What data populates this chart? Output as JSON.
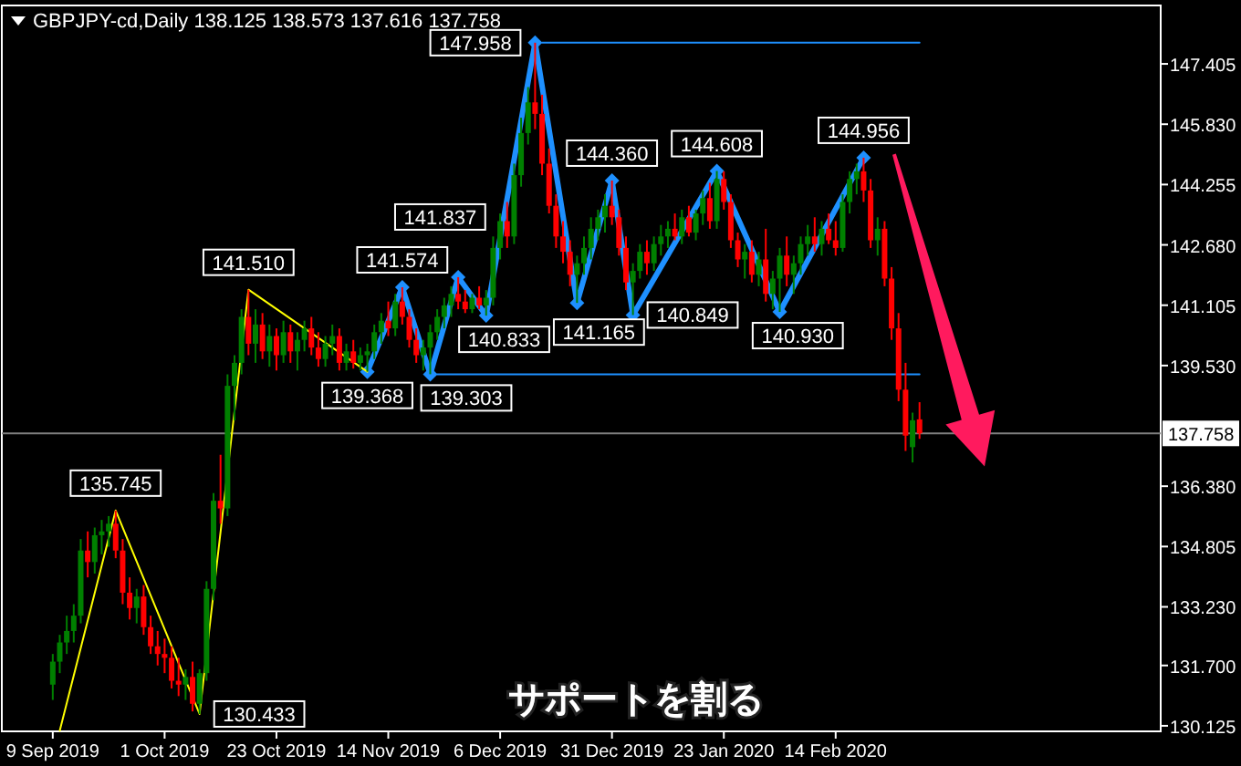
{
  "chart_data": {
    "type": "candlestick",
    "title": "GBPJPY-cd,Daily  138.125 138.573 137.616 137.758",
    "categories": [
      "9 Sep 2019",
      null,
      null,
      null,
      null,
      null,
      null,
      null,
      null,
      null,
      null,
      null,
      null,
      null,
      null,
      null,
      "1 Oct 2019",
      null,
      null,
      null,
      null,
      null,
      null,
      null,
      null,
      null,
      null,
      null,
      null,
      null,
      null,
      null,
      "23 Oct 2019",
      null,
      null,
      null,
      null,
      null,
      null,
      null,
      null,
      null,
      null,
      null,
      null,
      null,
      null,
      null,
      "14 Nov 2019",
      null,
      null,
      null,
      null,
      null,
      null,
      null,
      null,
      null,
      null,
      null,
      null,
      null,
      null,
      null,
      "6 Dec 2019",
      null,
      null,
      null,
      null,
      null,
      null,
      null,
      null,
      null,
      null,
      null,
      null,
      null,
      null,
      null,
      "31 Dec 2019",
      null,
      null,
      null,
      null,
      null,
      null,
      null,
      null,
      null,
      null,
      null,
      null,
      null,
      null,
      null,
      "23 Jan 2020",
      null,
      null,
      null,
      null,
      null,
      null,
      null,
      null,
      null,
      null,
      null,
      null,
      null,
      null,
      null,
      "14 Feb 2020",
      null,
      null,
      null,
      null,
      null,
      null,
      null,
      null,
      null,
      null,
      null,
      null,
      null,
      null,
      null,
      null,
      null,
      null,
      null,
      null,
      null,
      null,
      null,
      null,
      null,
      null,
      null,
      null,
      null,
      null,
      null,
      null,
      null,
      null,
      null,
      null,
      null,
      null,
      null,
      null,
      null,
      null,
      null,
      null,
      null,
      null
    ],
    "ohlc": [
      [
        131.2,
        132.0,
        130.8,
        131.8
      ],
      [
        131.8,
        132.5,
        131.5,
        132.3
      ],
      [
        132.3,
        133.0,
        132.0,
        132.6
      ],
      [
        132.6,
        133.3,
        132.3,
        133.0
      ],
      [
        133.0,
        135.0,
        132.8,
        134.7
      ],
      [
        134.7,
        135.2,
        134.0,
        134.4
      ],
      [
        134.4,
        135.3,
        134.1,
        135.1
      ],
      [
        135.1,
        135.5,
        134.6,
        135.2
      ],
      [
        135.2,
        135.6,
        134.8,
        135.4
      ],
      [
        135.4,
        135.745,
        134.5,
        134.7
      ],
      [
        134.7,
        135.0,
        133.3,
        133.6
      ],
      [
        133.6,
        134.0,
        132.9,
        133.2
      ],
      [
        133.2,
        133.7,
        132.8,
        133.5
      ],
      [
        133.5,
        133.8,
        132.5,
        132.7
      ],
      [
        132.7,
        133.0,
        132.0,
        132.2
      ],
      [
        132.2,
        132.6,
        131.7,
        132.0
      ],
      [
        132.0,
        132.4,
        131.5,
        131.9
      ],
      [
        131.9,
        132.2,
        131.1,
        131.3
      ],
      [
        131.3,
        131.9,
        130.9,
        131.2
      ],
      [
        131.2,
        131.6,
        130.8,
        131.4
      ],
      [
        131.4,
        131.8,
        130.5,
        130.7
      ],
      [
        130.7,
        131.6,
        130.433,
        131.5
      ],
      [
        131.5,
        133.9,
        131.3,
        133.7
      ],
      [
        133.7,
        136.2,
        133.4,
        136.0
      ],
      [
        136.0,
        137.2,
        135.4,
        135.8
      ],
      [
        135.8,
        139.3,
        135.6,
        139.0
      ],
      [
        139.0,
        139.8,
        138.1,
        139.6
      ],
      [
        139.6,
        141.0,
        139.3,
        140.8
      ],
      [
        140.8,
        141.51,
        139.8,
        140.1
      ],
      [
        140.1,
        141.0,
        139.6,
        140.6
      ],
      [
        140.6,
        140.9,
        139.7,
        139.9
      ],
      [
        139.9,
        140.6,
        139.5,
        140.3
      ],
      [
        140.3,
        140.5,
        139.4,
        139.8
      ],
      [
        139.8,
        140.7,
        139.6,
        140.4
      ],
      [
        140.4,
        140.6,
        139.6,
        139.9
      ],
      [
        139.9,
        140.4,
        139.4,
        140.2
      ],
      [
        140.2,
        140.7,
        139.9,
        140.5
      ],
      [
        140.5,
        140.8,
        139.8,
        140.0
      ],
      [
        140.0,
        140.4,
        139.5,
        139.7
      ],
      [
        139.7,
        140.3,
        139.5,
        140.1
      ],
      [
        140.1,
        140.6,
        139.8,
        140.3
      ],
      [
        140.3,
        140.5,
        139.4,
        139.6
      ],
      [
        139.6,
        140.1,
        139.4,
        139.9
      ],
      [
        139.9,
        140.2,
        139.45,
        139.6
      ],
      [
        139.6,
        140.0,
        139.4,
        139.8
      ],
      [
        139.8,
        140.1,
        139.368,
        139.9
      ],
      [
        139.9,
        140.6,
        139.7,
        140.4
      ],
      [
        140.4,
        140.9,
        140.1,
        140.7
      ],
      [
        140.7,
        141.2,
        140.3,
        140.5
      ],
      [
        140.5,
        141.4,
        140.3,
        141.2
      ],
      [
        141.2,
        141.574,
        140.6,
        140.8
      ],
      [
        140.8,
        141.0,
        140.0,
        140.2
      ],
      [
        140.2,
        140.5,
        139.6,
        139.8
      ],
      [
        139.8,
        140.2,
        139.4,
        140.0
      ],
      [
        140.0,
        140.6,
        139.303,
        140.4
      ],
      [
        140.4,
        141.0,
        140.2,
        140.8
      ],
      [
        140.8,
        141.3,
        140.5,
        141.1
      ],
      [
        141.1,
        141.6,
        140.8,
        141.4
      ],
      [
        141.4,
        141.837,
        141.0,
        141.2
      ],
      [
        141.2,
        141.5,
        140.9,
        141.0
      ],
      [
        141.0,
        141.4,
        140.9,
        141.3
      ],
      [
        141.3,
        141.6,
        141.0,
        141.1
      ],
      [
        141.1,
        141.5,
        140.833,
        141.3
      ],
      [
        141.3,
        142.9,
        141.1,
        142.6
      ],
      [
        142.6,
        143.5,
        142.3,
        143.3
      ],
      [
        143.3,
        143.8,
        142.6,
        142.9
      ],
      [
        142.9,
        144.8,
        142.7,
        144.5
      ],
      [
        144.5,
        146.0,
        144.2,
        145.6
      ],
      [
        145.6,
        146.8,
        145.3,
        146.4
      ],
      [
        146.4,
        147.958,
        145.7,
        146.1
      ],
      [
        146.1,
        146.6,
        144.5,
        144.8
      ],
      [
        144.8,
        145.2,
        143.5,
        143.7
      ],
      [
        143.7,
        144.0,
        142.6,
        142.9
      ],
      [
        142.9,
        143.3,
        142.2,
        142.5
      ],
      [
        142.5,
        142.8,
        141.6,
        141.9
      ],
      [
        141.9,
        142.4,
        141.165,
        142.2
      ],
      [
        142.2,
        142.9,
        141.9,
        142.6
      ],
      [
        142.6,
        143.4,
        142.3,
        143.1
      ],
      [
        143.1,
        143.6,
        142.8,
        143.4
      ],
      [
        143.4,
        144.0,
        143.0,
        143.7
      ],
      [
        143.7,
        144.36,
        143.2,
        143.4
      ],
      [
        143.4,
        143.6,
        142.4,
        142.6
      ],
      [
        142.6,
        142.9,
        141.5,
        141.7
      ],
      [
        141.7,
        142.2,
        140.849,
        142.0
      ],
      [
        142.0,
        142.7,
        141.8,
        142.5
      ],
      [
        142.5,
        142.8,
        141.9,
        142.2
      ],
      [
        142.2,
        142.9,
        142.0,
        142.7
      ],
      [
        142.7,
        143.2,
        142.4,
        142.9
      ],
      [
        142.9,
        143.3,
        142.6,
        143.1
      ],
      [
        143.1,
        143.5,
        142.8,
        142.9
      ],
      [
        142.9,
        143.6,
        142.7,
        143.4
      ],
      [
        143.4,
        143.7,
        142.9,
        143.0
      ],
      [
        143.0,
        143.6,
        142.8,
        143.5
      ],
      [
        143.5,
        144.1,
        143.2,
        143.9
      ],
      [
        143.9,
        144.3,
        143.1,
        143.3
      ],
      [
        143.3,
        144.608,
        143.1,
        144.4
      ],
      [
        144.4,
        144.6,
        143.6,
        143.8
      ],
      [
        143.8,
        144.0,
        142.6,
        142.8
      ],
      [
        142.8,
        143.0,
        142.1,
        142.3
      ],
      [
        142.3,
        142.7,
        141.8,
        142.5
      ],
      [
        142.5,
        142.8,
        141.7,
        141.9
      ],
      [
        141.9,
        142.5,
        141.6,
        142.3
      ],
      [
        142.3,
        143.1,
        141.2,
        141.4
      ],
      [
        141.4,
        142.0,
        141.0,
        141.8
      ],
      [
        141.8,
        142.6,
        140.93,
        142.4
      ],
      [
        142.4,
        142.9,
        141.6,
        141.9
      ],
      [
        141.9,
        142.4,
        141.4,
        142.2
      ],
      [
        142.2,
        142.9,
        141.9,
        142.7
      ],
      [
        142.7,
        143.2,
        142.4,
        142.9
      ],
      [
        142.9,
        143.4,
        142.5,
        142.7
      ],
      [
        142.7,
        143.3,
        142.4,
        143.1
      ],
      [
        143.1,
        143.5,
        142.7,
        142.8
      ],
      [
        142.8,
        143.3,
        142.4,
        142.6
      ],
      [
        142.6,
        144.0,
        142.5,
        143.8
      ],
      [
        143.8,
        144.6,
        143.5,
        144.4
      ],
      [
        144.4,
        144.8,
        144.0,
        144.6
      ],
      [
        144.6,
        144.956,
        143.8,
        144.1
      ],
      [
        144.1,
        144.4,
        142.6,
        142.8
      ],
      [
        142.8,
        143.4,
        142.4,
        143.1
      ],
      [
        143.1,
        143.3,
        141.6,
        141.8
      ],
      [
        141.8,
        142.1,
        140.2,
        140.5
      ],
      [
        140.5,
        140.9,
        138.6,
        138.9
      ],
      [
        138.9,
        139.6,
        137.3,
        137.7
      ],
      [
        137.4,
        138.3,
        137.0,
        138.1
      ],
      [
        138.125,
        138.573,
        137.616,
        137.758
      ],
      null,
      null,
      null,
      null,
      null,
      null,
      null,
      null,
      null,
      null,
      null,
      null,
      null,
      null,
      null,
      null,
      null,
      null,
      null,
      null,
      null,
      null,
      null,
      null,
      null,
      null,
      null,
      null,
      null,
      null,
      null,
      null,
      null,
      null
    ],
    "series": [
      {
        "type": "line",
        "color": "#1e90ff",
        "marker": "diamond",
        "values": [
          null,
          null,
          null,
          null,
          null,
          null,
          null,
          null,
          null,
          null,
          null,
          null,
          null,
          null,
          null,
          null,
          null,
          null,
          null,
          null,
          null,
          null,
          null,
          null,
          null,
          null,
          null,
          null,
          null,
          null,
          null,
          null,
          null,
          null,
          null,
          null,
          null,
          null,
          null,
          null,
          null,
          null,
          null,
          null,
          null,
          139.368,
          null,
          null,
          null,
          null,
          141.574,
          null,
          null,
          null,
          139.303,
          null,
          null,
          null,
          141.837,
          null,
          null,
          null,
          140.833,
          null,
          null,
          null,
          null,
          null,
          null,
          147.958,
          null,
          null,
          null,
          null,
          null,
          141.165,
          null,
          null,
          null,
          null,
          144.36,
          null,
          null,
          140.849,
          null,
          null,
          null,
          null,
          null,
          null,
          null,
          null,
          null,
          null,
          null,
          144.608,
          null,
          null,
          null,
          null,
          null,
          null,
          null,
          null,
          140.93,
          null,
          null,
          null,
          null,
          null,
          null,
          null,
          null,
          null,
          null,
          null,
          144.956,
          null,
          null,
          null,
          null,
          null,
          null,
          null,
          null,
          null,
          null,
          null,
          null,
          null,
          null,
          null,
          null,
          null,
          null,
          null,
          null,
          null,
          null,
          null,
          null,
          null,
          null,
          null,
          null,
          null,
          null,
          null,
          null,
          null,
          null,
          null,
          null,
          null,
          null,
          null,
          null,
          null,
          null
        ],
        "value_labels": [
          null,
          null,
          null,
          null,
          null,
          null,
          null,
          null,
          null,
          null,
          null,
          null,
          null,
          null,
          null,
          null,
          null,
          null,
          null,
          null,
          null,
          null,
          null,
          null,
          null,
          null,
          null,
          null,
          null,
          null,
          null,
          null,
          null,
          null,
          null,
          null,
          null,
          null,
          null,
          null,
          null,
          null,
          null,
          null,
          null,
          "139.368",
          null,
          null,
          null,
          null,
          "141.574",
          null,
          null,
          null,
          "139.303",
          null,
          null,
          null,
          "141.837",
          null,
          null,
          null,
          "140.833",
          null,
          null,
          null,
          null,
          null,
          null,
          "147.958",
          null,
          null,
          null,
          null,
          null,
          "141.165",
          null,
          null,
          null,
          null,
          "144.360",
          null,
          null,
          "140.849",
          null,
          null,
          null,
          null,
          null,
          null,
          null,
          null,
          null,
          null,
          null,
          "144.608",
          null,
          null,
          null,
          null,
          null,
          null,
          null,
          null,
          "140.930",
          null,
          null,
          null,
          null,
          null,
          null,
          null,
          null,
          null,
          null,
          null,
          "144.956",
          null,
          null,
          null,
          null,
          null,
          null,
          null,
          null,
          null,
          null,
          null,
          null,
          null,
          null,
          null,
          null,
          null,
          null,
          null,
          null,
          null,
          null,
          null,
          null,
          null,
          null,
          null,
          null,
          null,
          null,
          null,
          null,
          null,
          null,
          null,
          null,
          null,
          null,
          null,
          null,
          null,
          null
        ]
      },
      {
        "type": "line",
        "color": "#ffff00",
        "values": [
          null,
          130.0,
          null,
          null,
          null,
          null,
          null,
          null,
          null,
          135.745,
          null,
          null,
          null,
          null,
          null,
          null,
          null,
          null,
          null,
          null,
          null,
          130.433,
          null,
          null,
          null,
          null,
          null,
          null,
          141.51,
          null,
          null,
          null,
          null,
          null,
          null,
          null,
          null,
          null,
          null,
          null,
          null,
          null,
          null,
          null,
          null,
          139.368,
          null,
          null,
          null,
          null,
          null,
          null,
          null,
          null,
          null,
          null,
          null,
          null,
          null,
          null,
          null,
          null,
          null,
          null,
          null,
          null,
          null,
          null,
          null,
          null,
          null,
          null,
          null,
          null,
          null,
          null,
          null,
          null,
          null,
          null,
          null,
          null,
          null,
          null,
          null,
          null,
          null,
          null,
          null,
          null,
          null,
          null,
          null,
          null,
          null,
          null,
          null,
          null,
          null,
          null,
          null,
          null,
          null,
          null,
          null,
          null,
          null,
          null,
          null,
          null,
          null,
          null,
          null,
          null,
          null,
          null,
          null,
          null,
          null,
          null,
          null,
          null,
          null,
          null,
          null,
          null,
          null,
          null,
          null,
          null,
          null,
          null,
          null,
          null,
          null,
          null,
          null,
          null,
          null,
          null,
          null,
          null,
          null,
          null,
          null,
          null,
          null,
          null,
          null,
          null,
          null,
          null,
          null,
          null,
          null,
          null,
          null,
          null,
          null
        ],
        "value_labels": [
          null,
          null,
          null,
          null,
          null,
          null,
          null,
          null,
          null,
          "135.745",
          null,
          null,
          null,
          null,
          null,
          null,
          null,
          null,
          null,
          null,
          null,
          "130.433",
          null,
          null,
          null,
          null,
          null,
          null,
          "141.510",
          null,
          null,
          null,
          null,
          null,
          null,
          null,
          null,
          null,
          null,
          null,
          null,
          null,
          null,
          null,
          null,
          null,
          null,
          null,
          null,
          null,
          null,
          null,
          null,
          null,
          null,
          null,
          null,
          null,
          null,
          null,
          null,
          null,
          null,
          null,
          null,
          null,
          null,
          null,
          null,
          null,
          null,
          null,
          null,
          null,
          null,
          null,
          null,
          null,
          null,
          null,
          null,
          null,
          null,
          null,
          null,
          null,
          null,
          null,
          null,
          null,
          null,
          null,
          null,
          null,
          null,
          null,
          null,
          null,
          null,
          null,
          null,
          null,
          null,
          null,
          null,
          null,
          null,
          null,
          null,
          null,
          null,
          null,
          null,
          null,
          null,
          null,
          null,
          null,
          null,
          null,
          null,
          null,
          null,
          null,
          null,
          null,
          null,
          null,
          null,
          null,
          null,
          null,
          null,
          null,
          null,
          null,
          null,
          null,
          null,
          null,
          null,
          null,
          null,
          null,
          null,
          null,
          null,
          null,
          null,
          null,
          null,
          null,
          null,
          null,
          null,
          null,
          null,
          null,
          null
        ]
      },
      {
        "type": "line",
        "color": "#1e90ff",
        "values": [
          null,
          null,
          null,
          null,
          null,
          null,
          null,
          null,
          null,
          null,
          null,
          null,
          null,
          null,
          null,
          null,
          null,
          null,
          null,
          null,
          null,
          null,
          null,
          null,
          null,
          null,
          null,
          null,
          null,
          null,
          null,
          null,
          null,
          null,
          null,
          null,
          null,
          null,
          null,
          null,
          null,
          null,
          null,
          null,
          null,
          null,
          null,
          null,
          null,
          null,
          null,
          null,
          null,
          null,
          null,
          null,
          null,
          null,
          null,
          null,
          null,
          null,
          null,
          null,
          null,
          null,
          null,
          null,
          null,
          null,
          147.958,
          147.958,
          147.958,
          147.958,
          147.958,
          147.958,
          147.958,
          147.958,
          147.958,
          147.958,
          147.958,
          147.958,
          147.958,
          147.958,
          147.958,
          147.958,
          147.958,
          147.958,
          147.958,
          147.958,
          147.958,
          147.958,
          147.958,
          147.958,
          147.958,
          147.958,
          147.958,
          147.958,
          147.958,
          147.958,
          147.958,
          147.958,
          147.958,
          147.958,
          147.958,
          147.958,
          147.958,
          147.958,
          147.958,
          147.958,
          147.958,
          147.958,
          147.958,
          147.958,
          147.958,
          147.958,
          147.958,
          147.958,
          147.958,
          147.958,
          147.958,
          147.958,
          147.958,
          147.958,
          147.958,
          null,
          null,
          null,
          null,
          null,
          null,
          null,
          null,
          null,
          null,
          null,
          null,
          null,
          null,
          null,
          null,
          null,
          null,
          null,
          null,
          null,
          null,
          null,
          null,
          null,
          null,
          null,
          null,
          null,
          null,
          null,
          null,
          null,
          null
        ]
      },
      {
        "type": "line",
        "color": "#1e90ff",
        "values": [
          null,
          null,
          null,
          null,
          null,
          null,
          null,
          null,
          null,
          null,
          null,
          null,
          null,
          null,
          null,
          null,
          null,
          null,
          null,
          null,
          null,
          null,
          null,
          null,
          null,
          null,
          null,
          null,
          null,
          null,
          null,
          null,
          null,
          null,
          null,
          null,
          null,
          null,
          null,
          null,
          null,
          null,
          null,
          null,
          null,
          null,
          null,
          null,
          null,
          null,
          null,
          null,
          null,
          null,
          null,
          139.303,
          139.303,
          139.303,
          139.303,
          139.303,
          139.303,
          139.303,
          139.303,
          139.303,
          139.303,
          139.303,
          139.303,
          139.303,
          139.303,
          139.303,
          139.303,
          139.303,
          139.303,
          139.303,
          139.303,
          139.303,
          139.303,
          139.303,
          139.303,
          139.303,
          139.303,
          139.303,
          139.303,
          139.303,
          139.303,
          139.303,
          139.303,
          139.303,
          139.303,
          139.303,
          139.303,
          139.303,
          139.303,
          139.303,
          139.303,
          139.303,
          139.303,
          139.303,
          139.303,
          139.303,
          139.303,
          139.303,
          139.303,
          139.303,
          139.303,
          139.303,
          139.303,
          139.303,
          139.303,
          139.303,
          139.303,
          139.303,
          139.303,
          139.303,
          139.303,
          139.303,
          139.303,
          139.303,
          139.303,
          139.303,
          139.303,
          139.303,
          139.303,
          139.303,
          139.303,
          null,
          null,
          null,
          null,
          null,
          null,
          null,
          null,
          null,
          null,
          null,
          null,
          null,
          null,
          null,
          null,
          null,
          null,
          null,
          null,
          null,
          null,
          null,
          null,
          null,
          null,
          null,
          null,
          null,
          null,
          null,
          null,
          null,
          null
        ]
      }
    ],
    "ref_lines": [
      {
        "axis": "y",
        "value": 137.758,
        "label": "137.758",
        "color": "#808080"
      }
    ],
    "annotations": [
      "サポートを割る"
    ],
    "ylim": [
      129.98,
      148.93
    ],
    "yticks": [
      130.125,
      {
        "value": 131.7,
        "label": "131.700"
      },
      {
        "value": 133.23,
        "label": "133.230"
      },
      134.805,
      {
        "value": 136.38,
        "label": "136.380"
      },
      {
        "value": 139.53,
        "label": "139.530"
      },
      141.105,
      {
        "value": 142.68,
        "label": "142.680"
      },
      144.255,
      {
        "value": 145.83,
        "label": "145.830"
      },
      147.405
    ]
  }
}
